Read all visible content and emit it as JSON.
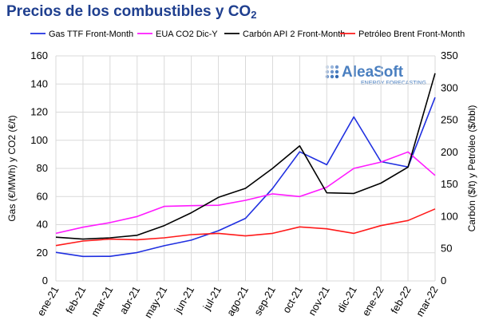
{
  "title_main": "Precios de los combustibles y CO",
  "title_sub": "2",
  "watermark": {
    "brand": "AleaSoft",
    "tagline": "ENERGY FORECASTING",
    "color": "#4a7fc0"
  },
  "chart_data": {
    "type": "line",
    "categories": [
      "ene-21",
      "feb-21",
      "mar-21",
      "abr-21",
      "may-21",
      "jun-21",
      "jul-21",
      "ago-21",
      "sep-21",
      "oct-21",
      "nov-21",
      "dic-21",
      "ene-22",
      "feb-22",
      "mar-22"
    ],
    "y_left": {
      "label": "Gas (€/MWh) y CO2 (€/t)",
      "min": 0,
      "max": 160,
      "ticks": [
        0,
        20,
        40,
        60,
        80,
        100,
        120,
        140,
        160
      ]
    },
    "y_right": {
      "label": "Carbón ($/t) y Petróleo ($/bbl)",
      "min": 0,
      "max": 350,
      "ticks": [
        0,
        50,
        100,
        150,
        200,
        250,
        300,
        350
      ]
    },
    "grid": true,
    "legend_position": "top",
    "series": [
      {
        "name": "Gas TTF Front-Month",
        "axis": "left",
        "color": "#1f2fe0",
        "values": [
          20.3,
          17.4,
          17.5,
          20.2,
          25.0,
          29.0,
          35.7,
          44.5,
          65.7,
          91.8,
          82.6,
          116.6,
          84.8,
          81.0,
          130.5
        ]
      },
      {
        "name": "EUA CO2 Dic-Y",
        "axis": "left",
        "color": "#ff1aff",
        "values": [
          33.8,
          38.2,
          41.5,
          45.8,
          53.0,
          53.5,
          53.8,
          57.3,
          61.9,
          60.0,
          66.6,
          80.0,
          84.5,
          91.7,
          75.0
        ]
      },
      {
        "name": "Carbón API 2 Front-Month",
        "axis": "right",
        "color": "#000000",
        "values": [
          68,
          65,
          67,
          71,
          86,
          106,
          130,
          144,
          175,
          210,
          137,
          136,
          152,
          177,
          323
        ]
      },
      {
        "name": "Petróleo Brent Front-Month",
        "axis": "right",
        "color": "#ff1a1a",
        "values": [
          55,
          62,
          65,
          64,
          67,
          72,
          74,
          70,
          74,
          84,
          81,
          74,
          86,
          94,
          112
        ]
      }
    ]
  }
}
